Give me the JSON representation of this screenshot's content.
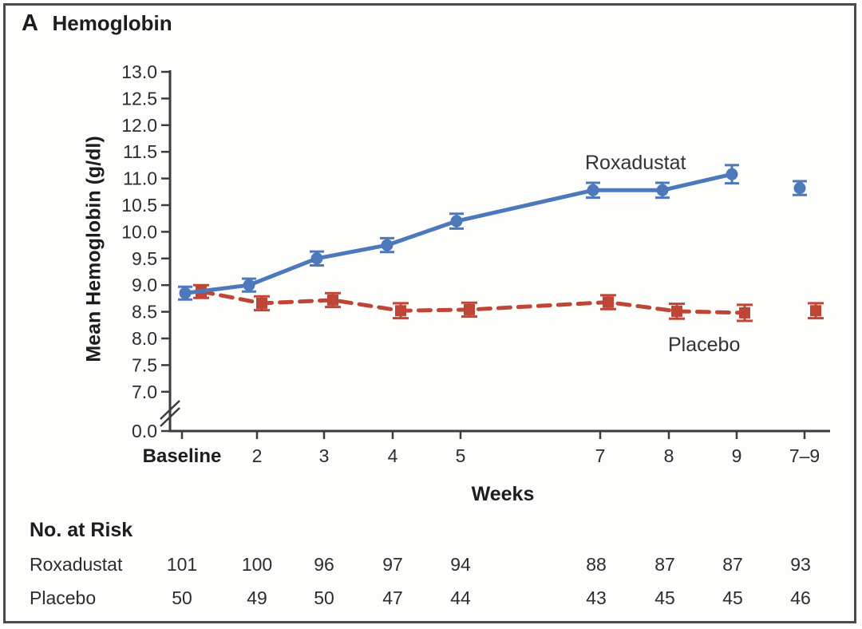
{
  "panel": {
    "label": "A",
    "title": "Hemoglobin"
  },
  "chart_data": {
    "type": "line",
    "title": "Hemoglobin",
    "xlabel": "Weeks",
    "ylabel": "Mean Hemoglobin (g/dl)",
    "categories": [
      "Baseline",
      "2",
      "3",
      "4",
      "5",
      "7",
      "8",
      "9",
      "7–9"
    ],
    "y_axis": {
      "tick_labels": [
        "13.0",
        "12.5",
        "12.0",
        "11.5",
        "11.0",
        "10.5",
        "10.0",
        "9.5",
        "9.0",
        "8.5",
        "8.0",
        "7.5",
        "7.0"
      ],
      "origin_label": "0.0",
      "axis_break": true,
      "plotted_range": [
        7.0,
        13.0
      ]
    },
    "grid": false,
    "legend_position": "inline-annotations",
    "series": [
      {
        "name": "Roxadustat",
        "color": "#4d78ba",
        "marker": "circle",
        "line_style": "solid",
        "values": [
          8.85,
          9.0,
          9.5,
          9.75,
          10.2,
          10.78,
          10.78,
          11.08,
          10.82
        ],
        "error": [
          0.12,
          0.12,
          0.13,
          0.13,
          0.14,
          0.14,
          0.14,
          0.17,
          0.13
        ],
        "detached_last_point": true
      },
      {
        "name": "Placebo",
        "color": "#bf4637",
        "marker": "square",
        "line_style": "dashed",
        "values": [
          8.88,
          8.66,
          8.72,
          8.52,
          8.54,
          8.68,
          8.51,
          8.48,
          8.52
        ],
        "error": [
          0.12,
          0.13,
          0.13,
          0.14,
          0.13,
          0.13,
          0.14,
          0.15,
          0.14
        ],
        "detached_last_point": true
      }
    ]
  },
  "risk_table": {
    "title": "No. at Risk",
    "rows": [
      {
        "label": "Roxadustat",
        "values": [
          "101",
          "100",
          "96",
          "97",
          "94",
          "88",
          "87",
          "87",
          "93"
        ]
      },
      {
        "label": "Placebo",
        "values": [
          "50",
          "49",
          "50",
          "47",
          "44",
          "43",
          "45",
          "45",
          "46"
        ]
      }
    ]
  },
  "colors": {
    "roxadustat": "#4d78ba",
    "placebo": "#bf4637",
    "axis": "#3c3c3c",
    "text": "#2d2d2d",
    "frame_border": "#4a4a4a"
  }
}
